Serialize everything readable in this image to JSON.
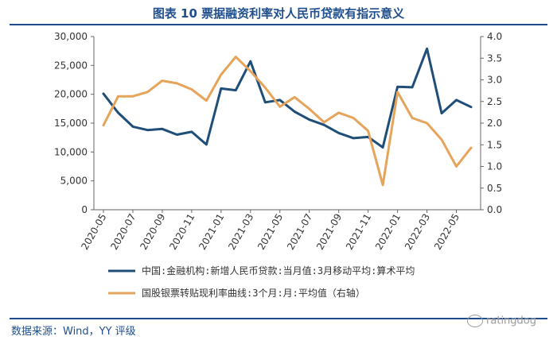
{
  "title": "图表 10 票据融资利率对人民币贷款有指示意义",
  "source": "数据来源：Wind，YY 评级",
  "watermark": "ratingdog",
  "chart_data": {
    "type": "line",
    "x": [
      "2020-05",
      "2020-06",
      "2020-07",
      "2020-08",
      "2020-09",
      "2020-10",
      "2020-11",
      "2020-12",
      "2021-01",
      "2021-02",
      "2021-03",
      "2021-04",
      "2021-05",
      "2021-06",
      "2021-07",
      "2021-08",
      "2021-09",
      "2021-10",
      "2021-11",
      "2021-12",
      "2022-01",
      "2022-02",
      "2022-03",
      "2022-04",
      "2022-05",
      "2022-06"
    ],
    "x_tick_labels": [
      "2020-05",
      "2020-07",
      "2020-09",
      "2020-11",
      "2021-01",
      "2021-03",
      "2021-05",
      "2021-07",
      "2021-09",
      "2021-11",
      "2022-01",
      "2022-03",
      "2022-05"
    ],
    "y_left": {
      "range": [
        0,
        30000
      ],
      "ticks": [
        "0",
        "5,000",
        "10,000",
        "15,000",
        "20,000",
        "25,000",
        "30,000"
      ]
    },
    "y_right": {
      "range": [
        0,
        4.0
      ],
      "ticks": [
        "0.0",
        "0.5",
        "1.0",
        "1.5",
        "2.0",
        "2.5",
        "3.0",
        "3.5",
        "4.0"
      ]
    },
    "series": [
      {
        "name": "中国:金融机构:新增人民币贷款:当月值:3月移动平均:算术平均",
        "axis": "left",
        "color": "#1f4e79",
        "values": [
          20100,
          16800,
          14400,
          13800,
          14000,
          13000,
          13500,
          11300,
          21000,
          20700,
          25700,
          18600,
          19000,
          17000,
          15600,
          14700,
          13300,
          12400,
          12600,
          10800,
          21300,
          21200,
          27900,
          16700,
          19000,
          17800
        ]
      },
      {
        "name": "国股银票转贴现利率曲线:3个月:月:平均值（右轴）",
        "axis": "right",
        "color": "#e6a35a",
        "values": [
          1.95,
          2.62,
          2.62,
          2.72,
          2.98,
          2.92,
          2.78,
          2.52,
          3.12,
          3.53,
          3.2,
          2.82,
          2.38,
          2.6,
          2.33,
          2.02,
          2.24,
          2.12,
          1.82,
          0.57,
          2.72,
          2.12,
          2.0,
          1.62,
          1.0,
          1.43
        ]
      }
    ],
    "grid": false,
    "legend_placement": "bottom"
  }
}
